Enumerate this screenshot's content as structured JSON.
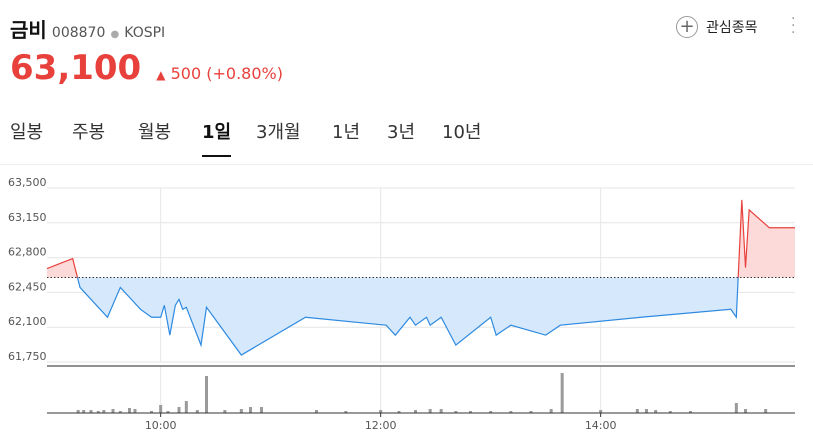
{
  "header": {
    "name": "금비",
    "code": "008870",
    "market": "KOSPI",
    "watch": "관심종목",
    "price": "63,100",
    "change": "500",
    "change_pct": "(+0.80%)"
  },
  "tabs": [
    "일봉",
    "주봉",
    "월봉",
    "1일",
    "3개월",
    "1년",
    "3년",
    "10년"
  ],
  "active_tab": 3,
  "chart_data": {
    "type": "line",
    "x": [
      538,
      552,
      556,
      571,
      578,
      582,
      589,
      595,
      600,
      602,
      605,
      608,
      610,
      612,
      614,
      622,
      625,
      644,
      679,
      723,
      728,
      736,
      739,
      745,
      747,
      753,
      761,
      780,
      783,
      791,
      810,
      818,
      862,
      911,
      914,
      915,
      917,
      919,
      921,
      932,
      946
    ],
    "series": [
      {
        "values": [
          62690,
          62790,
          62500,
          62200,
          62500,
          62420,
          62280,
          62200,
          62200,
          62320,
          62020,
          62320,
          62380,
          62280,
          62300,
          61920,
          62300,
          61820,
          62200,
          62120,
          62020,
          62200,
          62120,
          62200,
          62120,
          62200,
          61920,
          62200,
          62020,
          62120,
          62020,
          62120,
          62200,
          62280,
          62200,
          62600,
          63380,
          62700,
          63280,
          63100,
          63100
        ]
      }
    ],
    "baseline": 62600,
    "up_color": "#e8413c",
    "down_color": "#2d8ae0",
    "up_fill": "#fddada",
    "down_fill": "#d6e8fb",
    "xlim": [
      538,
      946
    ],
    "ylim": [
      61750,
      63500
    ],
    "yticks": [
      {
        "value": 61750,
        "label": "61,750"
      },
      {
        "value": 62100,
        "label": "62,100"
      },
      {
        "value": 62450,
        "label": "62,450"
      },
      {
        "value": 62800,
        "label": "62,800"
      },
      {
        "value": 63150,
        "label": "63,150"
      },
      {
        "value": 63500,
        "label": "63,500"
      }
    ],
    "xticks": [
      {
        "value": 600,
        "label": "10:00"
      },
      {
        "value": 720,
        "label": "12:00"
      },
      {
        "value": 840,
        "label": "14:00"
      }
    ],
    "grid": true,
    "volume": {
      "color": "#9a9a9a",
      "lim": [
        0,
        46
      ],
      "x": [
        555,
        558,
        562,
        566,
        569,
        574,
        578,
        583,
        586,
        595,
        600,
        604,
        610,
        614,
        620,
        625,
        635,
        644,
        649,
        655,
        685,
        701,
        720,
        730,
        739,
        747,
        753,
        761,
        769,
        780,
        791,
        802,
        813,
        819,
        840,
        860,
        865,
        870,
        878,
        889,
        914,
        919,
        930
      ],
      "values": [
        3,
        3,
        3,
        2,
        3,
        4,
        2,
        5,
        4,
        2,
        8,
        2,
        6,
        12,
        3,
        37,
        3,
        4,
        6,
        6,
        3,
        2,
        3,
        2,
        3,
        4,
        4,
        2,
        2,
        2,
        2,
        2,
        4,
        40,
        3,
        4,
        4,
        3,
        2,
        2,
        10,
        4,
        4
      ]
    }
  }
}
